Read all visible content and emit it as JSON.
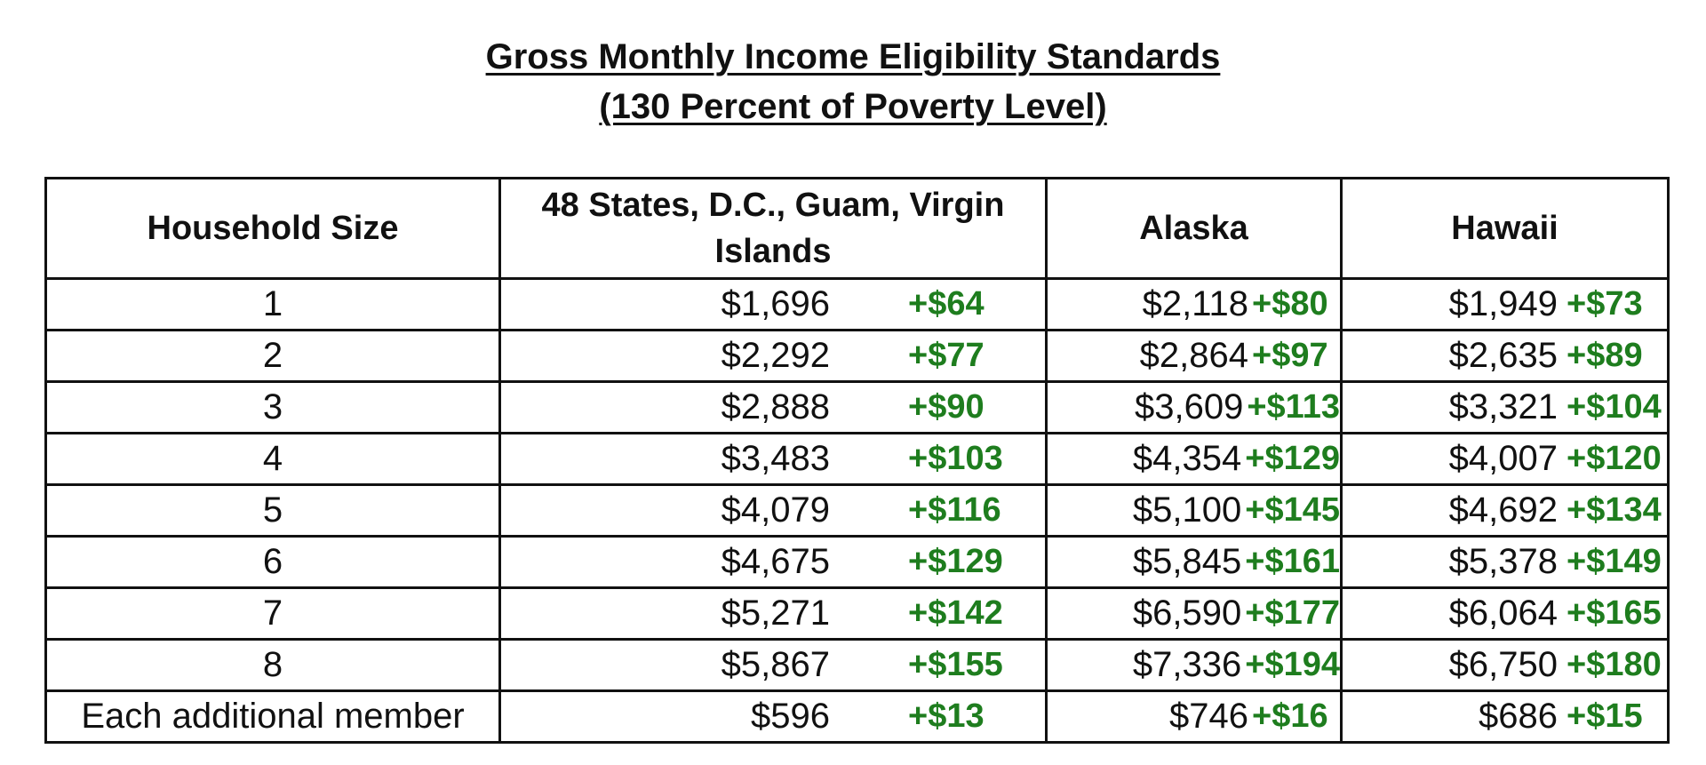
{
  "title": {
    "line1": "Gross Monthly Income Eligibility Standards",
    "line2": "(130 Percent of Poverty Level)"
  },
  "table": {
    "headers": {
      "household_size": "Household Size",
      "us": "48 States, D.C., Guam, Virgin Islands",
      "alaska": "Alaska",
      "hawaii": "Hawaii"
    },
    "rows": [
      {
        "size": "1",
        "us": "$1,696",
        "us_inc": "+$64",
        "ak": "$2,118",
        "ak_inc": "+$80",
        "hi": "$1,949",
        "hi_inc": "+$73"
      },
      {
        "size": "2",
        "us": "$2,292",
        "us_inc": "+$77",
        "ak": "$2,864",
        "ak_inc": "+$97",
        "hi": "$2,635",
        "hi_inc": "+$89"
      },
      {
        "size": "3",
        "us": "$2,888",
        "us_inc": "+$90",
        "ak": "$3,609",
        "ak_inc": "+$113",
        "hi": "$3,321",
        "hi_inc": "+$104"
      },
      {
        "size": "4",
        "us": "$3,483",
        "us_inc": "+$103",
        "ak": "$4,354",
        "ak_inc": "+$129",
        "hi": "$4,007",
        "hi_inc": "+$120"
      },
      {
        "size": "5",
        "us": "$4,079",
        "us_inc": "+$116",
        "ak": "$5,100",
        "ak_inc": "+$145",
        "hi": "$4,692",
        "hi_inc": "+$134"
      },
      {
        "size": "6",
        "us": "$4,675",
        "us_inc": "+$129",
        "ak": "$5,845",
        "ak_inc": "+$161",
        "hi": "$5,378",
        "hi_inc": "+$149"
      },
      {
        "size": "7",
        "us": "$5,271",
        "us_inc": "+$142",
        "ak": "$6,590",
        "ak_inc": "+$177",
        "hi": "$6,064",
        "hi_inc": "+$165"
      },
      {
        "size": "8",
        "us": "$5,867",
        "us_inc": "+$155",
        "ak": "$7,336",
        "ak_inc": "+$194",
        "hi": "$6,750",
        "hi_inc": "+$180"
      },
      {
        "size": "Each additional member",
        "us": "$596",
        "us_inc": "+$13",
        "ak": "$746",
        "ak_inc": "+$16",
        "hi": "$686",
        "hi_inc": "+$15"
      }
    ]
  },
  "colors": {
    "increase": "#1e7d1e",
    "text": "#111111",
    "border": "#111111"
  }
}
